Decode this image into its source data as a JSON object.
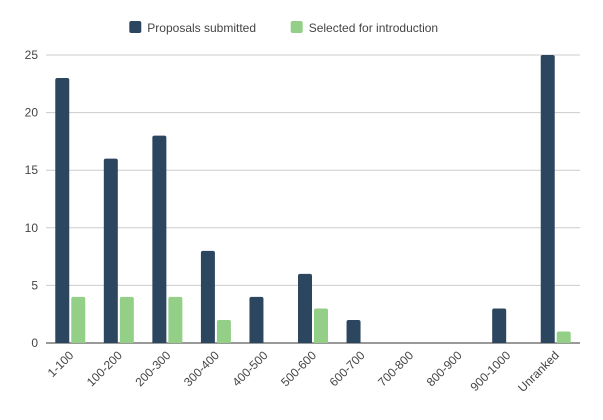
{
  "chart_data": {
    "type": "bar",
    "categories": [
      "1-100",
      "100-200",
      "200-300",
      "300-400",
      "400-500",
      "500-600",
      "600-700",
      "700-800",
      "800-900",
      "900-1000",
      "Unranked"
    ],
    "series": [
      {
        "name": "Proposals submitted",
        "color": "#2d4660",
        "values": [
          23,
          16,
          18,
          8,
          4,
          6,
          2,
          0,
          0,
          3,
          25
        ]
      },
      {
        "name": "Selected for introduction",
        "color": "#93cf86",
        "values": [
          4,
          4,
          4,
          2,
          0,
          3,
          0,
          0,
          0,
          0,
          1
        ]
      }
    ],
    "ylim": [
      0,
      25
    ],
    "yticks": [
      0,
      5,
      10,
      15,
      20,
      25
    ],
    "grid": true,
    "legend_position": "top-center"
  }
}
